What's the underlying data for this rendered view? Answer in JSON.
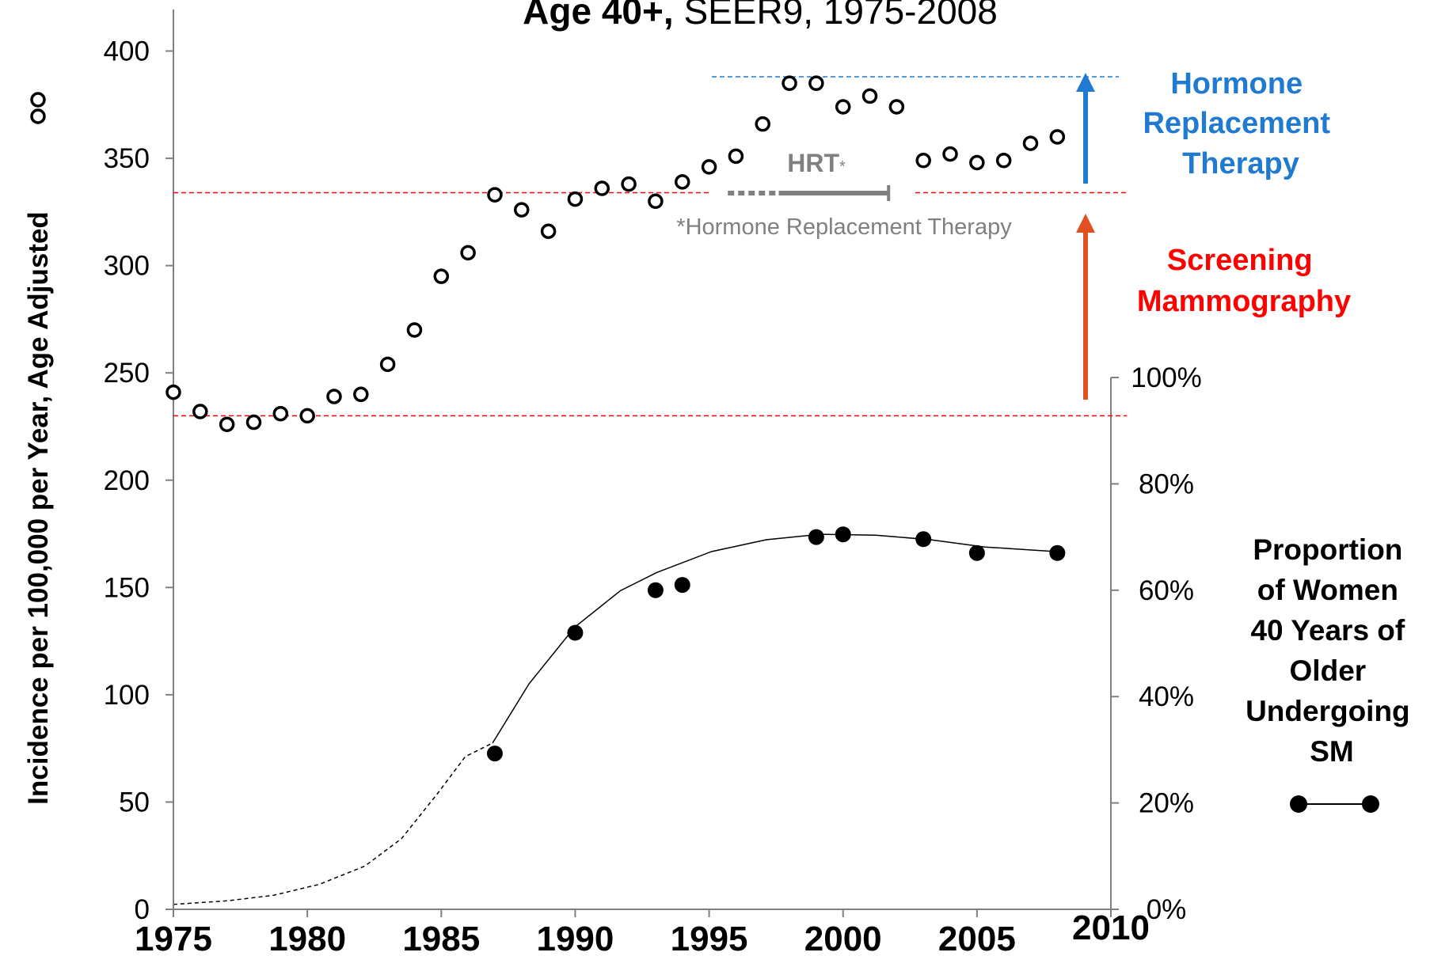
{
  "chart_data": {
    "type": "scatter",
    "title_bold": "Age 40+,",
    "title_rest": "SEER9, 1975-2008",
    "y_axis_label": "Incidence per 100,000 per Year, Age Adjusted",
    "y2_axis_label": [
      "Proportion",
      "of Women",
      "40 Years of",
      "Older",
      "Undergoing",
      "SM"
    ],
    "x": [
      1975,
      1976,
      1977,
      1978,
      1979,
      1980,
      1981,
      1982,
      1983,
      1984,
      1985,
      1986,
      1987,
      1988,
      1989,
      1990,
      1991,
      1992,
      1993,
      1994,
      1995,
      1996,
      1997,
      1998,
      1999,
      2000,
      2001,
      2002,
      2003,
      2004,
      2005,
      2006,
      2007,
      2008
    ],
    "series": [
      {
        "color": "#000000",
        "marker": "open",
        "values": [
          241,
          232,
          226,
          227,
          231,
          230,
          239,
          240,
          254,
          270,
          295,
          306,
          333,
          326,
          316,
          331,
          336,
          338,
          330,
          339,
          346,
          351,
          366,
          385,
          385,
          374,
          379,
          374,
          349,
          352,
          348,
          349,
          357,
          360
        ]
      },
      {
        "color": "#000000",
        "marker": "filled",
        "axis": "y2",
        "x": [
          1987,
          1990,
          1993,
          1994,
          1999,
          2000,
          2003,
          2005,
          2008
        ],
        "values": [
          29.3,
          52,
          60,
          61,
          70,
          70.5,
          69.6,
          67,
          67
        ]
      }
    ],
    "xlim": [
      1975,
      2010
    ],
    "xticks": [
      1975,
      1980,
      1985,
      1990,
      1995,
      2000,
      2005,
      2010
    ],
    "ylim": [
      0,
      400
    ],
    "yticks": [
      0,
      50,
      100,
      150,
      200,
      250,
      300,
      350,
      400
    ],
    "y2lim": [
      0,
      100
    ],
    "y2ticks": [
      {
        "value": 0,
        "label": "0%"
      },
      {
        "value": 20,
        "label": "20%"
      },
      {
        "value": 40,
        "label": "40%"
      },
      {
        "value": 60,
        "label": "60%"
      },
      {
        "value": 80,
        "label": "80%"
      },
      {
        "value": 100,
        "label": "100%"
      }
    ],
    "reference_lines": [
      {
        "value": 230,
        "color": "#ff0000",
        "from": 1975,
        "to": 2010.6
      },
      {
        "value": 334,
        "color": "#ff0000",
        "from": 1975,
        "to": 1995
      },
      {
        "value": 334,
        "color": "#ff0000",
        "from": 2002.7,
        "to": 2010.6
      },
      {
        "value": 388,
        "color": "#1f7ad0",
        "from": 1995.1,
        "to": 2010.3
      }
    ],
    "annotations": {
      "hormone": [
        "Hormone",
        "Replacement",
        "Therapy"
      ],
      "screening": [
        "Screening",
        "Mammography"
      ],
      "hrt": "HRT",
      "hrt_star": "*",
      "hrt_note": "*Hormone Replacement Therapy"
    },
    "hrt_period": {
      "dotted_from": 1995.7,
      "solid_from": 1997.6,
      "to": 2001.7
    }
  }
}
